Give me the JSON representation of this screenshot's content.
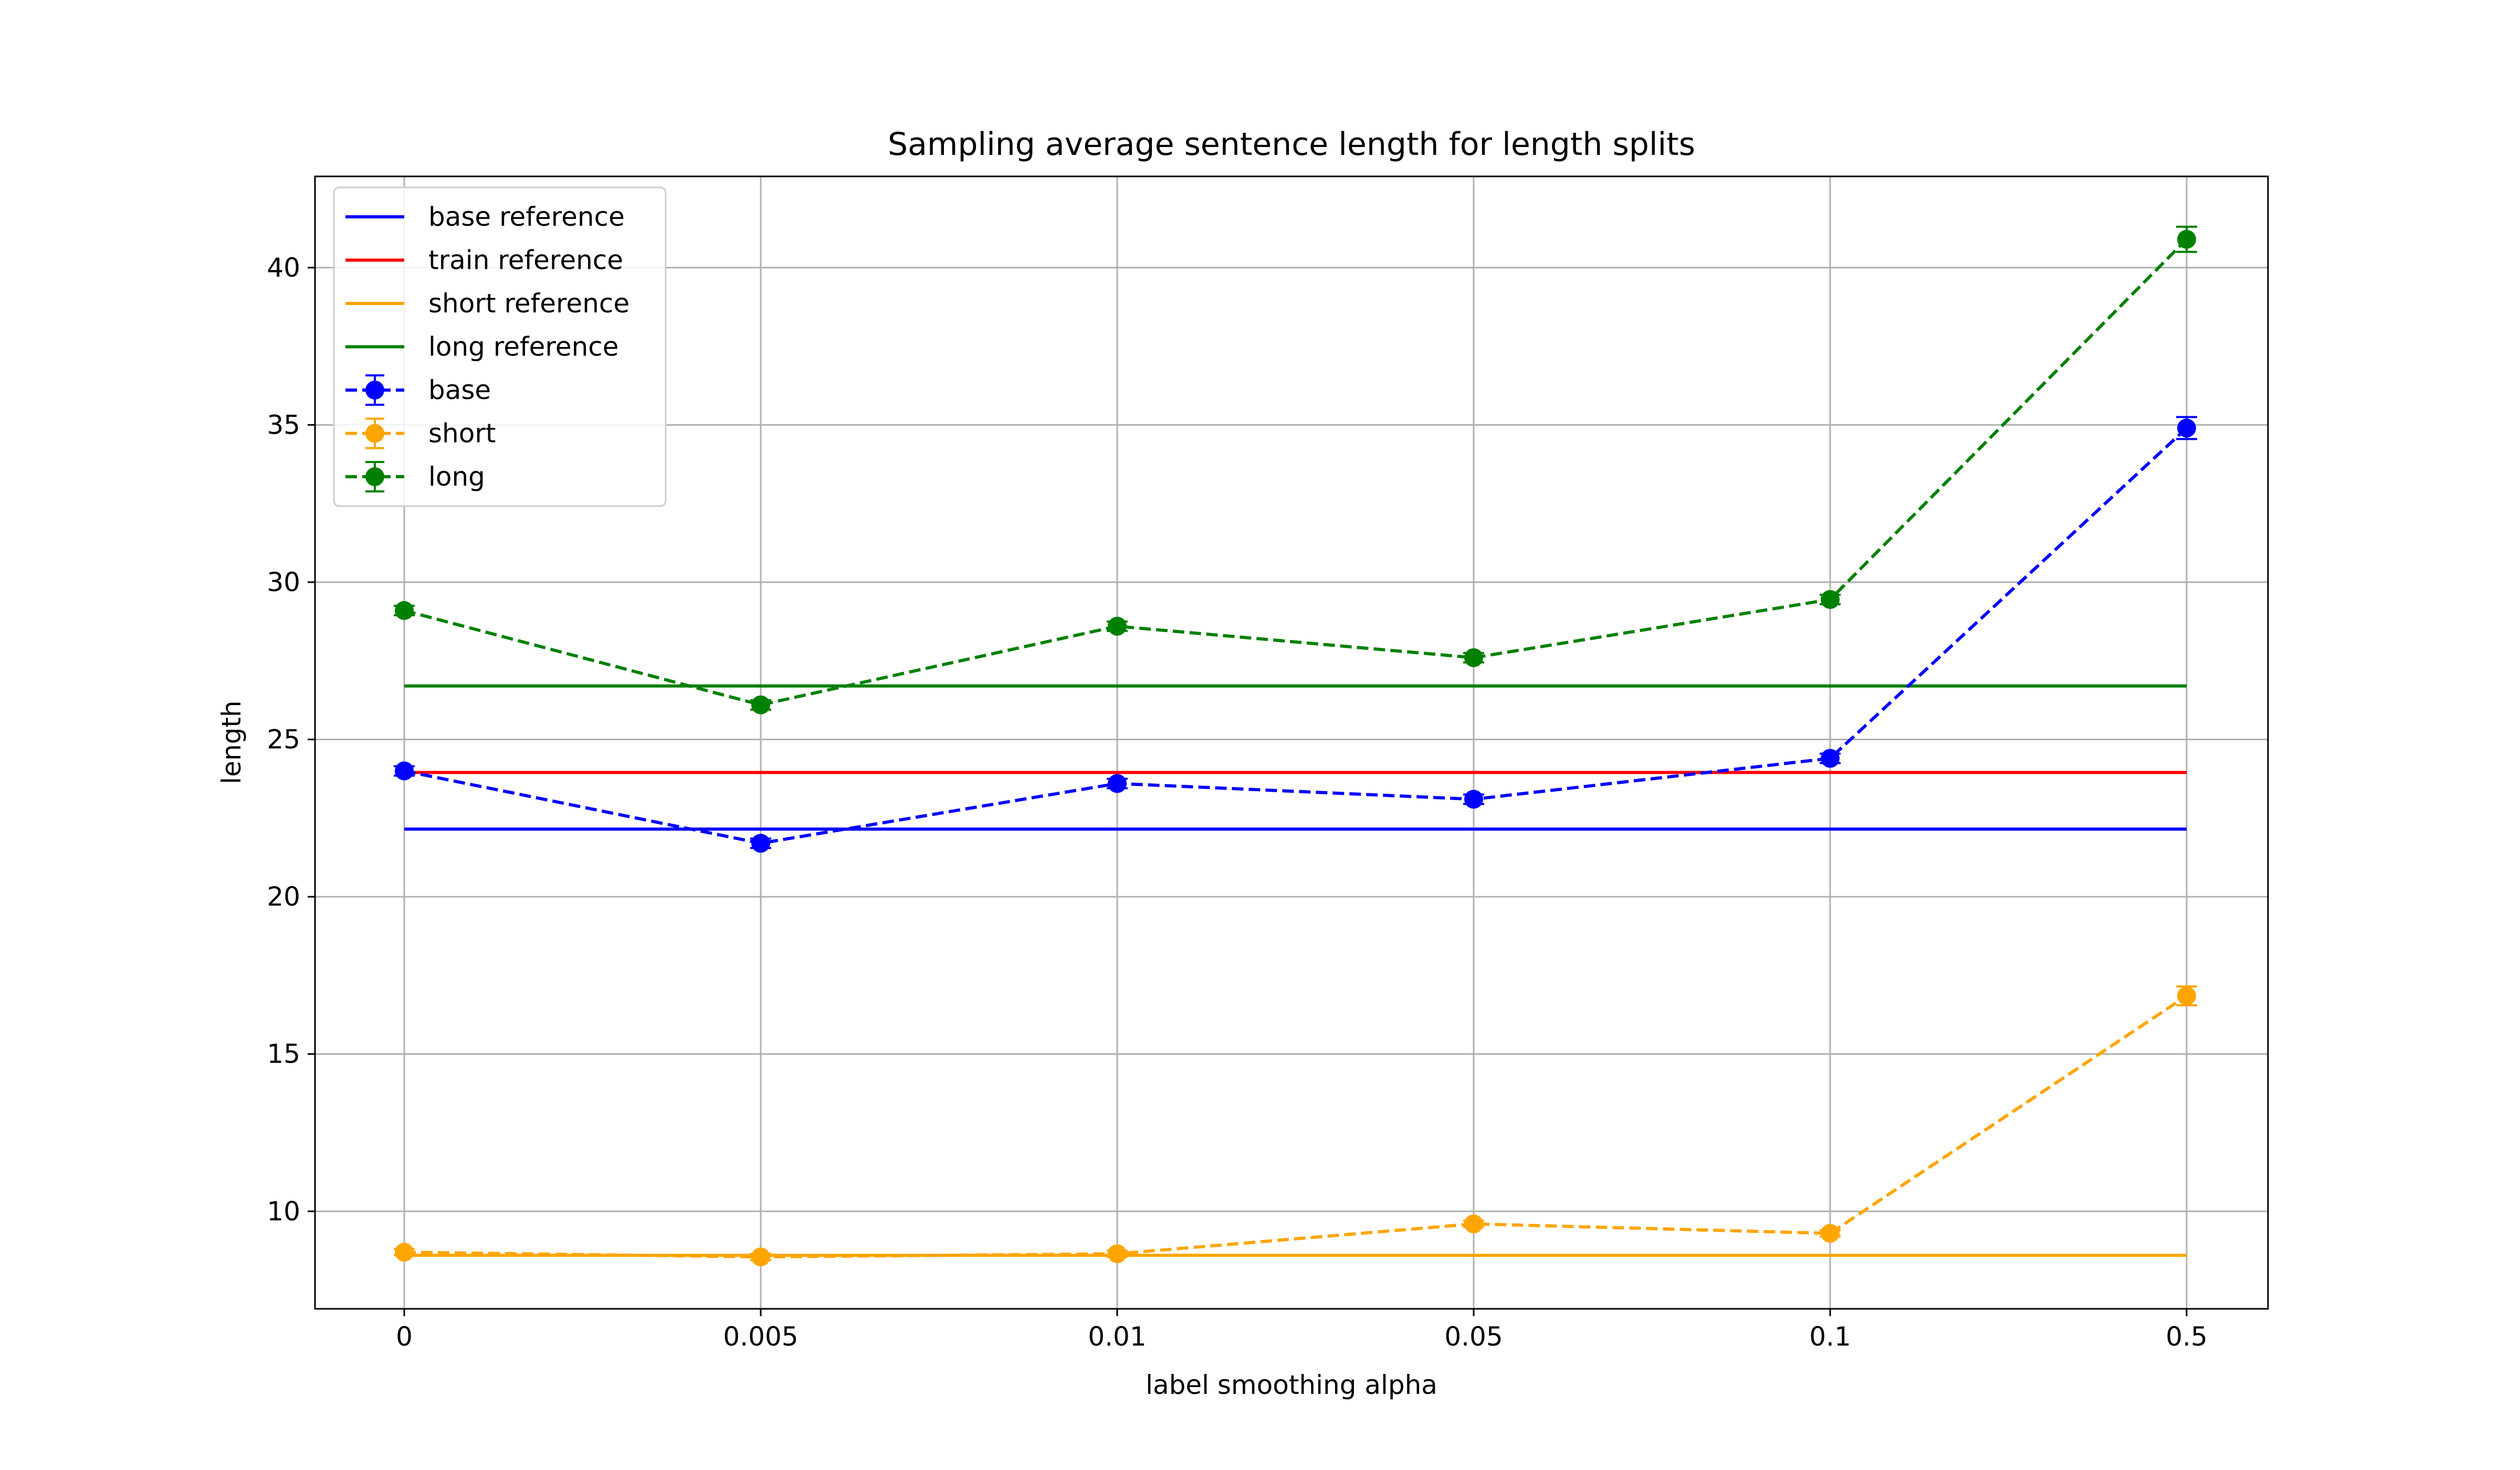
{
  "chart_data": {
    "type": "line",
    "title": "Sampling average sentence length for length splits",
    "xlabel": "label smoothing alpha",
    "ylabel": "length",
    "categories": [
      "0",
      "0.005",
      "0.01",
      "0.05",
      "0.1",
      "0.5"
    ],
    "ylim": [
      6.9,
      42.9
    ],
    "yticks": [
      10,
      15,
      20,
      25,
      30,
      35,
      40
    ],
    "grid": true,
    "legend_position": "top-left",
    "reference_lines": [
      {
        "name": "base reference",
        "value": 22.15,
        "color": "#0000ff"
      },
      {
        "name": "train reference",
        "value": 23.95,
        "color": "#ff0000"
      },
      {
        "name": "short reference",
        "value": 8.6,
        "color": "#ffa500"
      },
      {
        "name": "long reference",
        "value": 26.7,
        "color": "#008000"
      }
    ],
    "series": [
      {
        "name": "base",
        "color": "#0000ff",
        "style": "dashed",
        "marker": "circle",
        "values": [
          24.0,
          21.7,
          23.6,
          23.1,
          24.4,
          34.9
        ],
        "errors": [
          0.15,
          0.15,
          0.15,
          0.15,
          0.15,
          0.35
        ]
      },
      {
        "name": "short",
        "color": "#ffa500",
        "style": "dashed",
        "marker": "circle",
        "values": [
          8.7,
          8.55,
          8.65,
          9.6,
          9.3,
          16.85
        ],
        "errors": [
          0.1,
          0.1,
          0.1,
          0.1,
          0.1,
          0.3
        ]
      },
      {
        "name": "long",
        "color": "#008000",
        "style": "dashed",
        "marker": "circle",
        "values": [
          29.1,
          26.1,
          28.6,
          27.6,
          29.45,
          40.9
        ],
        "errors": [
          0.15,
          0.15,
          0.15,
          0.15,
          0.15,
          0.4
        ]
      }
    ]
  }
}
